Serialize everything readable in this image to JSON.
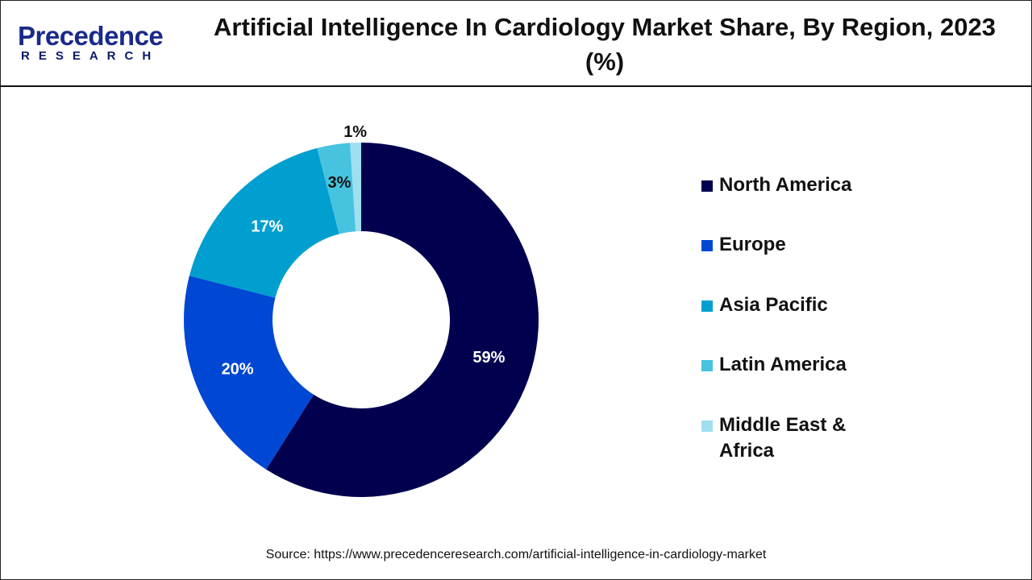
{
  "logo": {
    "text": "Precedence",
    "subtext": "RESEARCH"
  },
  "title": "Artificial Intelligence In Cardiology Market Share, By Region, 2023 (%)",
  "source": "Source: https://www.precedenceresearch.com/artificial-intelligence-in-cardiology-market",
  "chart_data": {
    "type": "pie",
    "variant": "donut",
    "title": "Artificial Intelligence In Cardiology Market Share, By Region, 2023 (%)",
    "categories": [
      "North America",
      "Europe",
      "Asia Pacific",
      "Latin America",
      "Middle East & Africa"
    ],
    "values": [
      59,
      20,
      17,
      3,
      1
    ],
    "labels": [
      "59%",
      "20%",
      "17%",
      "3%",
      "1%"
    ],
    "colors": [
      "#00004f",
      "#0047d4",
      "#009fd0",
      "#47c3e0",
      "#9ee0f0"
    ],
    "label_colors": [
      "#ffffff",
      "#ffffff",
      "#ffffff",
      "#111111",
      "#111111"
    ],
    "legend_position": "right",
    "start": "top",
    "direction": "clockwise"
  }
}
